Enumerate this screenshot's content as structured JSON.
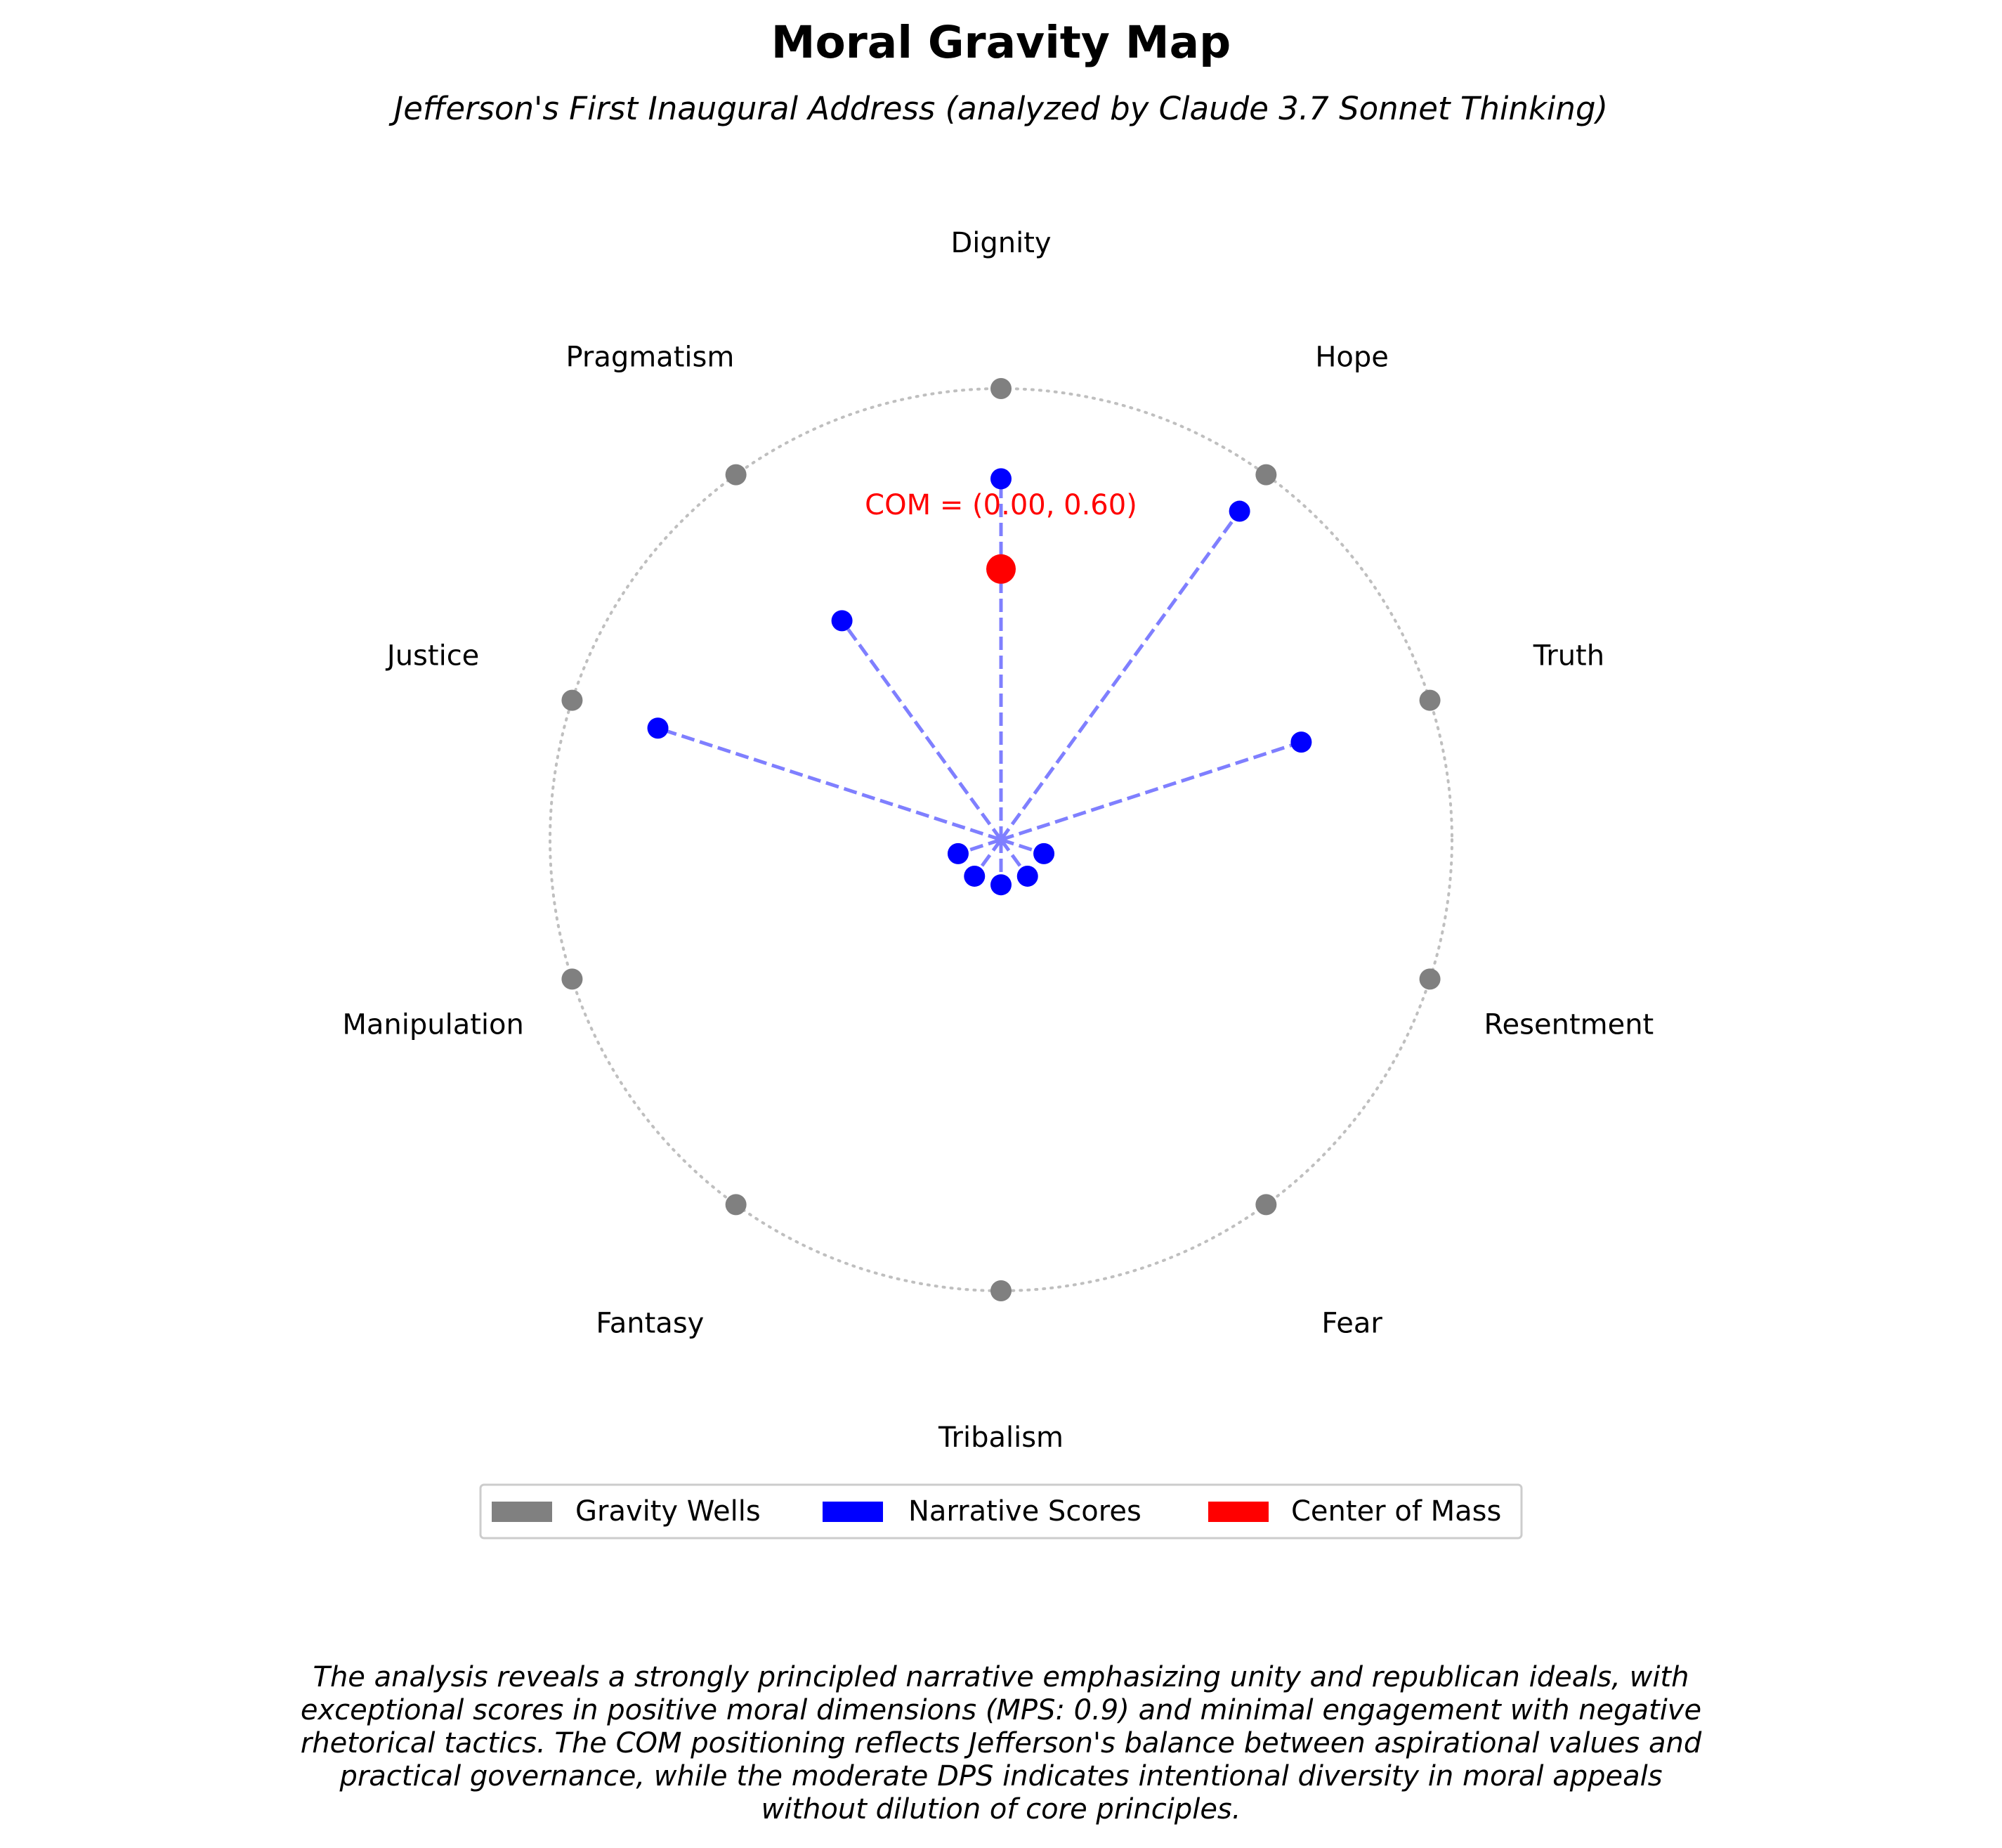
{
  "chart_data": {
    "type": "scatter",
    "title": "Moral Gravity Map",
    "subtitle": "Jefferson's First Inaugural Address (analyzed by Claude 3.7 Sonnet Thinking)",
    "wells": [
      {
        "name": "Dignity",
        "score": 0.8
      },
      {
        "name": "Hope",
        "score": 0.9
      },
      {
        "name": "Truth",
        "score": 0.7
      },
      {
        "name": "Resentment",
        "score": 0.1
      },
      {
        "name": "Fear",
        "score": 0.1
      },
      {
        "name": "Tribalism",
        "score": 0.1
      },
      {
        "name": "Fantasy",
        "score": 0.1
      },
      {
        "name": "Manipulation",
        "score": 0.1
      },
      {
        "name": "Justice",
        "score": 0.8
      },
      {
        "name": "Pragmatism",
        "score": 0.6
      }
    ],
    "center_of_mass": {
      "x": 0.0,
      "y": 0.6,
      "label": "COM = (0.00, 0.60)"
    },
    "grid": false,
    "legend_position": "bottom-center",
    "legend": [
      {
        "label": "Gravity Wells",
        "color": "#808080"
      },
      {
        "label": "Narrative Scores",
        "color": "#0000ff"
      },
      {
        "label": "Center of Mass",
        "color": "#ff0000"
      }
    ],
    "colors": {
      "well": "#808080",
      "score": "#0000ff",
      "line": "#7f7fff",
      "com": "#ff0000",
      "circle": "#bfbfbf"
    }
  },
  "caption": [
    "The analysis reveals a strongly principled narrative emphasizing unity and republican ideals, with",
    "exceptional scores in positive moral dimensions (MPS: 0.9) and minimal engagement with negative",
    "rhetorical tactics. The COM positioning reflects Jefferson's balance between aspirational values and",
    "practical governance, while the moderate DPS indicates intentional diversity in moral appeals",
    "without dilution of core principles."
  ]
}
